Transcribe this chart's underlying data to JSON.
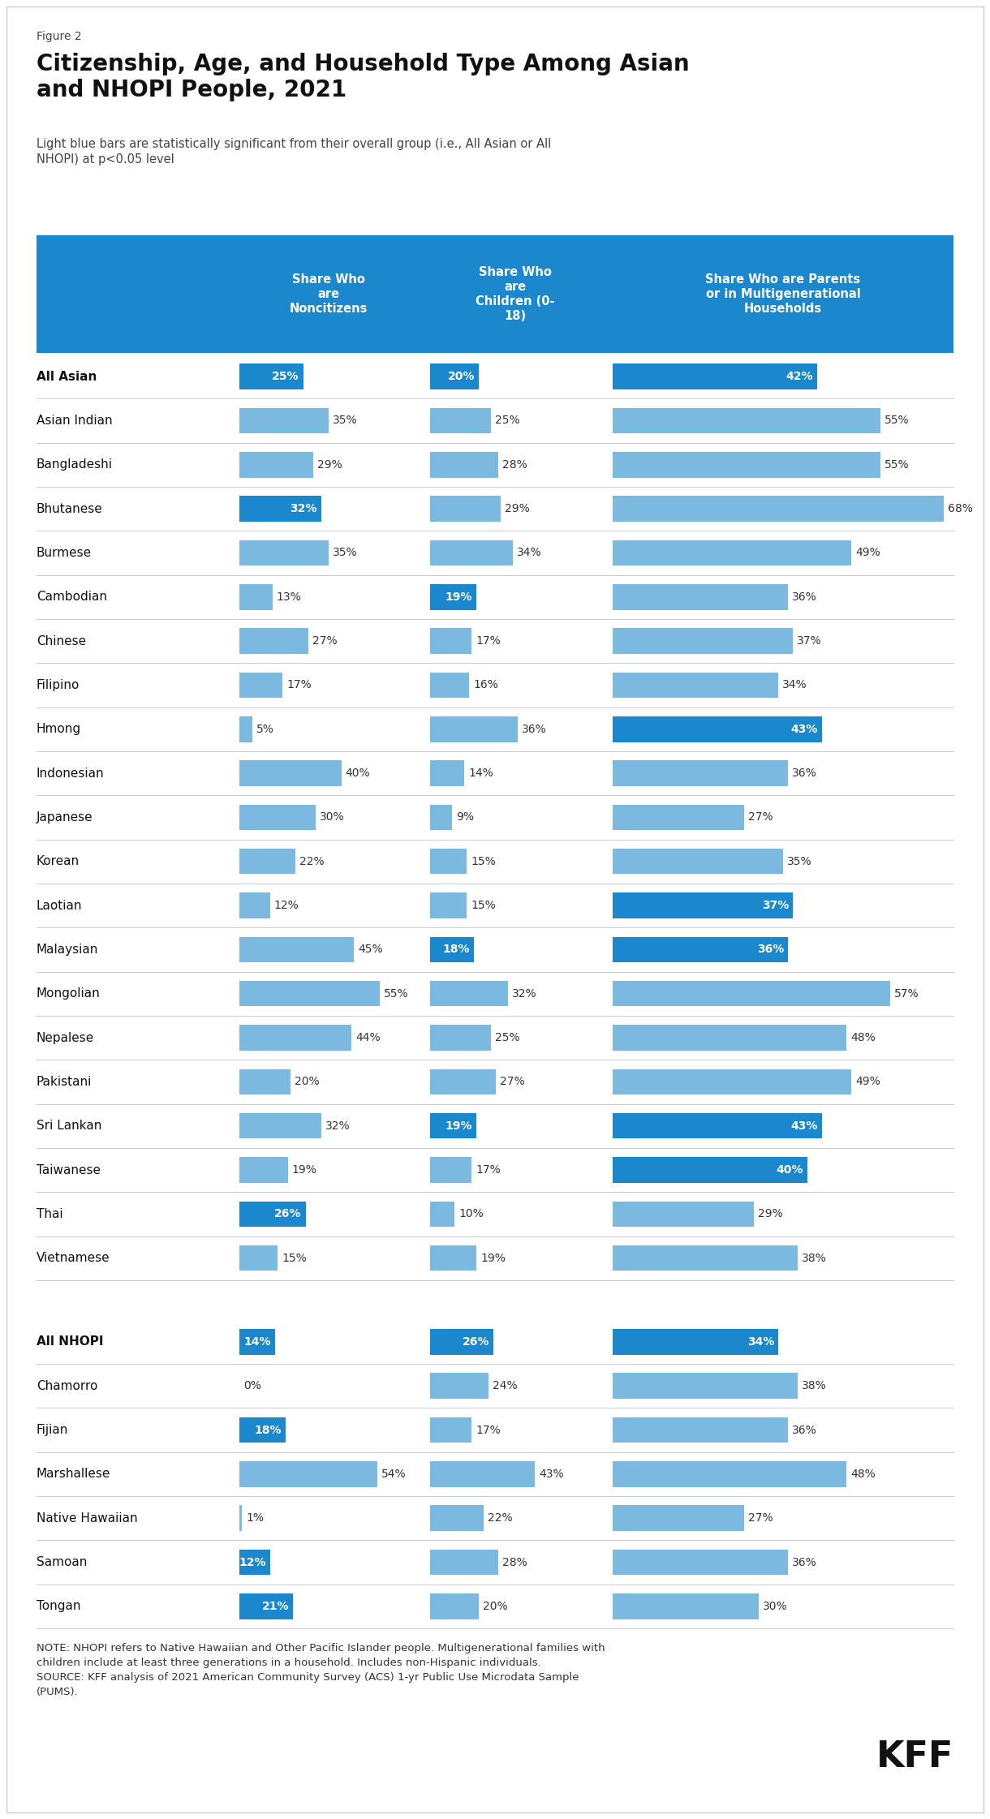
{
  "figure_label": "Figure 2",
  "title": "Citizenship, Age, and Household Type Among Asian\nand NHOPI People, 2021",
  "subtitle": "Light blue bars are statistically significant from their overall group (i.e., All Asian or All\nNHOPI) at p<0.05 level",
  "col_headers": [
    "Share Who\nare\nNoncitizens",
    "Share Who\nare\nChildren (0-\n18)",
    "Share Who are Parents\nor in Multigenerational\nHouseholds"
  ],
  "header_bg": "#1b87cc",
  "dark_blue": "#1b87cc",
  "light_blue": "#7cb9e0",
  "rows": [
    {
      "label": "All Asian",
      "bold": true,
      "gap_before": false,
      "col1": 25,
      "col1_dark": true,
      "col2": 20,
      "col2_dark": true,
      "col3": 42,
      "col3_dark": true
    },
    {
      "label": "Asian Indian",
      "bold": false,
      "gap_before": false,
      "col1": 35,
      "col1_dark": false,
      "col2": 25,
      "col2_dark": false,
      "col3": 55,
      "col3_dark": false
    },
    {
      "label": "Bangladeshi",
      "bold": false,
      "gap_before": false,
      "col1": 29,
      "col1_dark": false,
      "col2": 28,
      "col2_dark": false,
      "col3": 55,
      "col3_dark": false
    },
    {
      "label": "Bhutanese",
      "bold": false,
      "gap_before": false,
      "col1": 32,
      "col1_dark": true,
      "col2": 29,
      "col2_dark": false,
      "col3": 68,
      "col3_dark": false
    },
    {
      "label": "Burmese",
      "bold": false,
      "gap_before": false,
      "col1": 35,
      "col1_dark": false,
      "col2": 34,
      "col2_dark": false,
      "col3": 49,
      "col3_dark": false
    },
    {
      "label": "Cambodian",
      "bold": false,
      "gap_before": false,
      "col1": 13,
      "col1_dark": false,
      "col2": 19,
      "col2_dark": true,
      "col3": 36,
      "col3_dark": false
    },
    {
      "label": "Chinese",
      "bold": false,
      "gap_before": false,
      "col1": 27,
      "col1_dark": false,
      "col2": 17,
      "col2_dark": false,
      "col3": 37,
      "col3_dark": false
    },
    {
      "label": "Filipino",
      "bold": false,
      "gap_before": false,
      "col1": 17,
      "col1_dark": false,
      "col2": 16,
      "col2_dark": false,
      "col3": 34,
      "col3_dark": false
    },
    {
      "label": "Hmong",
      "bold": false,
      "gap_before": false,
      "col1": 5,
      "col1_dark": false,
      "col2": 36,
      "col2_dark": false,
      "col3": 43,
      "col3_dark": true
    },
    {
      "label": "Indonesian",
      "bold": false,
      "gap_before": false,
      "col1": 40,
      "col1_dark": false,
      "col2": 14,
      "col2_dark": false,
      "col3": 36,
      "col3_dark": false
    },
    {
      "label": "Japanese",
      "bold": false,
      "gap_before": false,
      "col1": 30,
      "col1_dark": false,
      "col2": 9,
      "col2_dark": false,
      "col3": 27,
      "col3_dark": false
    },
    {
      "label": "Korean",
      "bold": false,
      "gap_before": false,
      "col1": 22,
      "col1_dark": false,
      "col2": 15,
      "col2_dark": false,
      "col3": 35,
      "col3_dark": false
    },
    {
      "label": "Laotian",
      "bold": false,
      "gap_before": false,
      "col1": 12,
      "col1_dark": false,
      "col2": 15,
      "col2_dark": false,
      "col3": 37,
      "col3_dark": true
    },
    {
      "label": "Malaysian",
      "bold": false,
      "gap_before": false,
      "col1": 45,
      "col1_dark": false,
      "col2": 18,
      "col2_dark": true,
      "col3": 36,
      "col3_dark": true
    },
    {
      "label": "Mongolian",
      "bold": false,
      "gap_before": false,
      "col1": 55,
      "col1_dark": false,
      "col2": 32,
      "col2_dark": false,
      "col3": 57,
      "col3_dark": false
    },
    {
      "label": "Nepalese",
      "bold": false,
      "gap_before": false,
      "col1": 44,
      "col1_dark": false,
      "col2": 25,
      "col2_dark": false,
      "col3": 48,
      "col3_dark": false
    },
    {
      "label": "Pakistani",
      "bold": false,
      "gap_before": false,
      "col1": 20,
      "col1_dark": false,
      "col2": 27,
      "col2_dark": false,
      "col3": 49,
      "col3_dark": false
    },
    {
      "label": "Sri Lankan",
      "bold": false,
      "gap_before": false,
      "col1": 32,
      "col1_dark": false,
      "col2": 19,
      "col2_dark": true,
      "col3": 43,
      "col3_dark": true
    },
    {
      "label": "Taiwanese",
      "bold": false,
      "gap_before": false,
      "col1": 19,
      "col1_dark": false,
      "col2": 17,
      "col2_dark": false,
      "col3": 40,
      "col3_dark": true
    },
    {
      "label": "Thai",
      "bold": false,
      "gap_before": false,
      "col1": 26,
      "col1_dark": true,
      "col2": 10,
      "col2_dark": false,
      "col3": 29,
      "col3_dark": false
    },
    {
      "label": "Vietnamese",
      "bold": false,
      "gap_before": false,
      "col1": 15,
      "col1_dark": false,
      "col2": 19,
      "col2_dark": false,
      "col3": 38,
      "col3_dark": false
    },
    {
      "label": "All NHOPI",
      "bold": true,
      "gap_before": true,
      "col1": 14,
      "col1_dark": true,
      "col2": 26,
      "col2_dark": true,
      "col3": 34,
      "col3_dark": true
    },
    {
      "label": "Chamorro",
      "bold": false,
      "gap_before": false,
      "col1": 0,
      "col1_dark": false,
      "col2": 24,
      "col2_dark": false,
      "col3": 38,
      "col3_dark": false
    },
    {
      "label": "Fijian",
      "bold": false,
      "gap_before": false,
      "col1": 18,
      "col1_dark": true,
      "col2": 17,
      "col2_dark": false,
      "col3": 36,
      "col3_dark": false
    },
    {
      "label": "Marshallese",
      "bold": false,
      "gap_before": false,
      "col1": 54,
      "col1_dark": false,
      "col2": 43,
      "col2_dark": false,
      "col3": 48,
      "col3_dark": false
    },
    {
      "label": "Native Hawaiian",
      "bold": false,
      "gap_before": false,
      "col1": 1,
      "col1_dark": false,
      "col2": 22,
      "col2_dark": false,
      "col3": 27,
      "col3_dark": false
    },
    {
      "label": "Samoan",
      "bold": false,
      "gap_before": false,
      "col1": 12,
      "col1_dark": true,
      "col2": 28,
      "col2_dark": false,
      "col3": 36,
      "col3_dark": false
    },
    {
      "label": "Tongan",
      "bold": false,
      "gap_before": false,
      "col1": 21,
      "col1_dark": true,
      "col2": 20,
      "col2_dark": false,
      "col3": 30,
      "col3_dark": false
    }
  ],
  "note": "NOTE: NHOPI refers to Native Hawaiian and Other Pacific Islander people. Multigenerational families with\nchildren include at least three generations in a household. Includes non-Hispanic individuals.\nSOURCE: KFF analysis of 2021 American Community Survey (ACS) 1-yr Public Use Microdata Sample\n(PUMS).",
  "kff_logo": "KFF",
  "max_val": 70,
  "bg_color": "#ffffff",
  "border_color": "#cccccc",
  "fig_label_fs": 10,
  "title_fs": 20,
  "subtitle_fs": 10.5,
  "header_fs": 10.5,
  "row_label_fs": 11,
  "bar_label_fs": 10,
  "note_fs": 9.5
}
